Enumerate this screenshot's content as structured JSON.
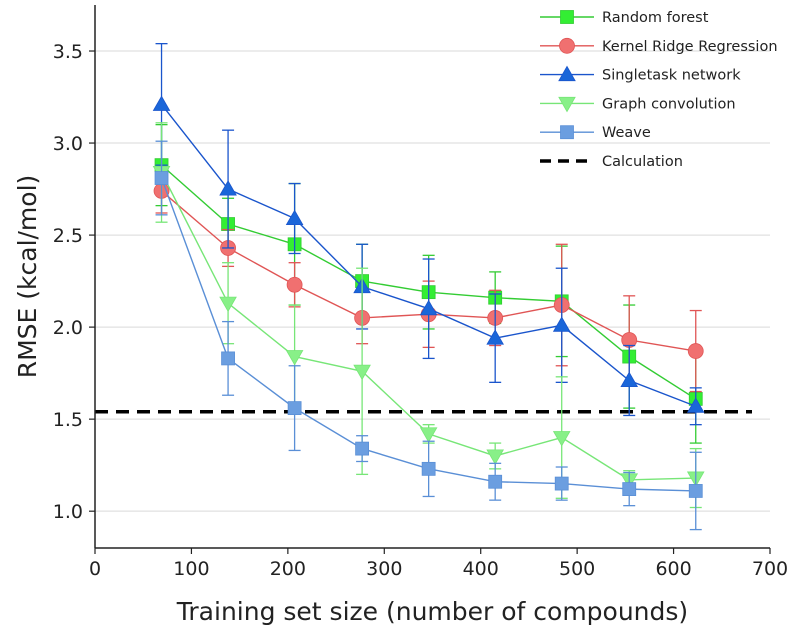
{
  "chart_data": {
    "type": "line",
    "xlabel": "Training set size (number of compounds)",
    "ylabel": "RMSE (kcal/mol)",
    "xlim": [
      0,
      700
    ],
    "ylim": [
      0.8,
      3.75
    ],
    "x_ticks": [
      0,
      100,
      200,
      300,
      400,
      500,
      600,
      700
    ],
    "y_ticks": [
      1.0,
      1.5,
      2.0,
      2.5,
      3.0,
      3.5
    ],
    "x_tick_labels": [
      "0",
      "100",
      "200",
      "300",
      "400",
      "500",
      "600",
      "700"
    ],
    "y_tick_labels": [
      "1.0",
      "1.5",
      "2.0",
      "2.5",
      "3.0",
      "3.5"
    ],
    "grid": "horizontal",
    "legend_position": "top-right",
    "x": [
      69,
      138,
      207,
      277,
      346,
      415,
      484,
      554,
      623
    ],
    "series": [
      {
        "name": "Random forest",
        "color": "#33ee33",
        "line_color": "#33cc33",
        "marker": "square",
        "values": [
          2.88,
          2.56,
          2.45,
          2.25,
          2.19,
          2.16,
          2.14,
          1.84,
          1.61
        ],
        "error": [
          0.22,
          0.14,
          0.33,
          0.2,
          0.2,
          0.14,
          0.3,
          0.28,
          0.24
        ]
      },
      {
        "name": "Kernel Ridge Regression",
        "color": "#f07070",
        "line_color": "#e05555",
        "marker": "circle",
        "values": [
          2.74,
          2.43,
          2.23,
          2.05,
          2.07,
          2.05,
          2.12,
          1.93,
          1.87
        ],
        "error": [
          0.12,
          0.1,
          0.12,
          0.14,
          0.18,
          0.15,
          0.33,
          0.24,
          0.22
        ]
      },
      {
        "name": "Singletask network",
        "color": "#1a66d9",
        "line_color": "#1a55cc",
        "marker": "triangle-up",
        "values": [
          3.21,
          2.75,
          2.59,
          2.22,
          2.1,
          1.94,
          2.01,
          1.71,
          1.57
        ],
        "error": [
          0.33,
          0.32,
          0.19,
          0.23,
          0.27,
          0.24,
          0.31,
          0.19,
          0.1
        ]
      },
      {
        "name": "Graph convolution",
        "color": "#88f088",
        "line_color": "#77e677",
        "marker": "triangle-down",
        "values": [
          2.84,
          2.13,
          1.84,
          1.76,
          1.42,
          1.3,
          1.4,
          1.17,
          1.18
        ],
        "error": [
          0.27,
          0.22,
          0.28,
          0.56,
          0.05,
          0.07,
          0.33,
          0.05,
          0.16
        ]
      },
      {
        "name": "Weave",
        "color": "#6b9ee0",
        "line_color": "#5a8fd6",
        "marker": "square",
        "values": [
          2.81,
          1.83,
          1.56,
          1.34,
          1.23,
          1.16,
          1.15,
          1.12,
          1.11
        ],
        "error": [
          0.2,
          0.2,
          0.23,
          0.07,
          0.15,
          0.1,
          0.09,
          0.09,
          0.21
        ]
      }
    ],
    "reference_lines": [
      {
        "name": "Calculation",
        "y": 1.54,
        "color": "#000000",
        "style": "dashed"
      }
    ]
  }
}
